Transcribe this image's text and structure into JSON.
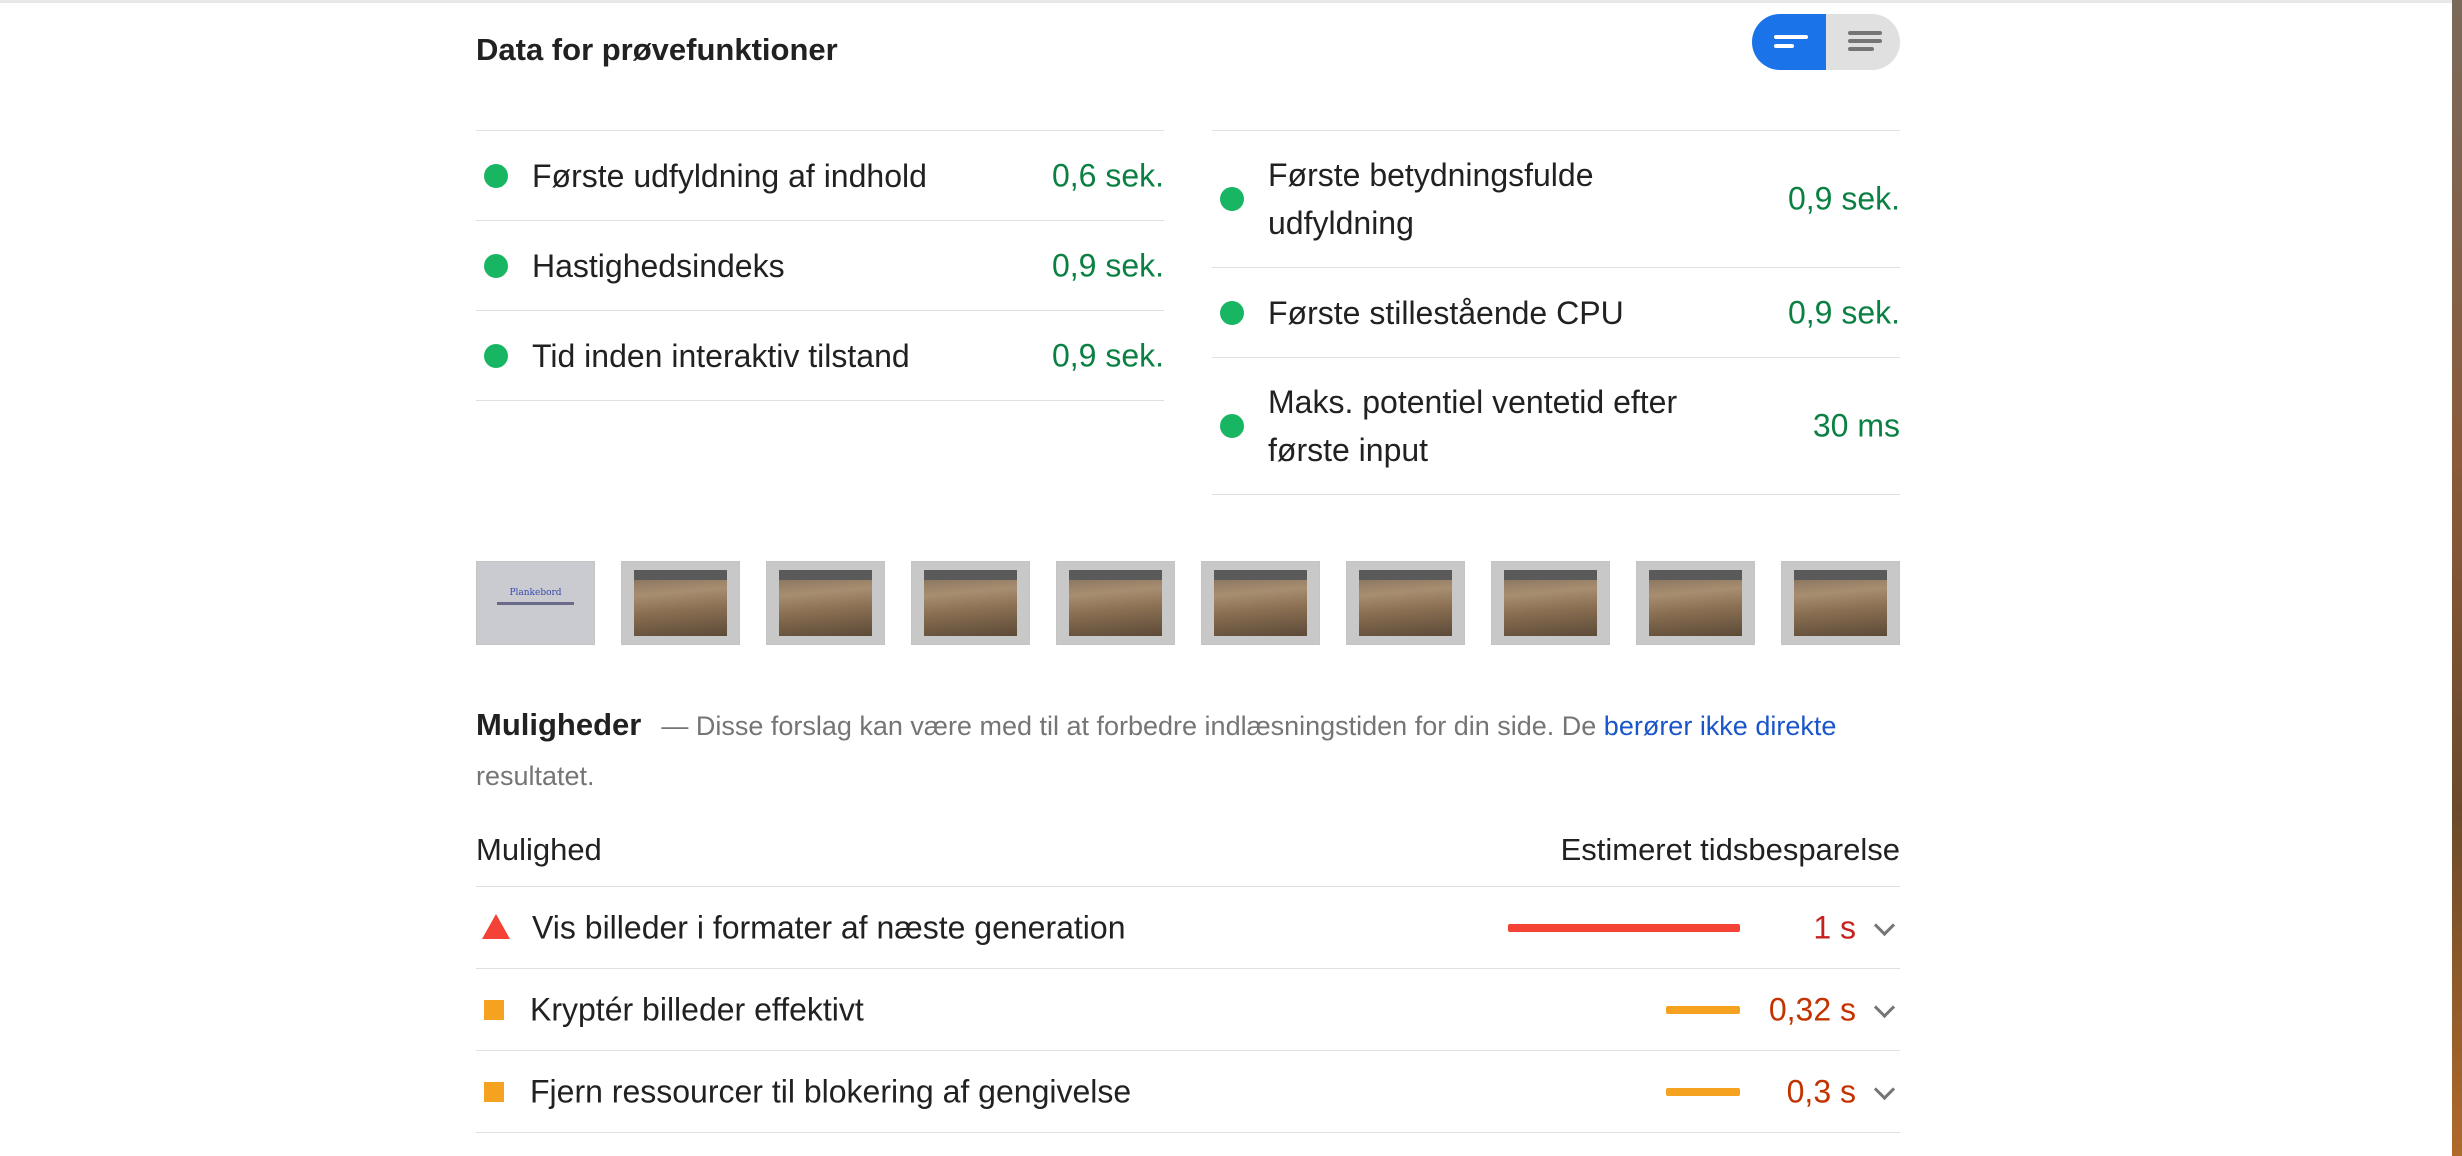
{
  "section": {
    "title": "Data for prøvefunktioner",
    "toggle": {
      "left_icon": "lines-icon",
      "right_icon": "list-icon"
    }
  },
  "metrics": {
    "left": [
      {
        "label": "Første udfyldning af indhold",
        "value": "0,6 sek.",
        "status": "pass"
      },
      {
        "label": "Hastighedsindeks",
        "value": "0,9 sek.",
        "status": "pass"
      },
      {
        "label": "Tid inden interaktiv tilstand",
        "value": "0,9 sek.",
        "status": "pass"
      }
    ],
    "right": [
      {
        "label": "Første betydningsfulde udfyldning",
        "value": "0,9 sek.",
        "status": "pass"
      },
      {
        "label": "Første stillestående CPU",
        "value": "0,9 sek.",
        "status": "pass"
      },
      {
        "label": "Maks. potentiel ventetid efter første input",
        "value": "30 ms",
        "status": "pass"
      }
    ],
    "pass_color": "#0b8043",
    "dot_color": "#18b663"
  },
  "filmstrip": {
    "first_frame_title": "Plankebord"
  },
  "opportunities": {
    "title": "Muligheder",
    "desc_prefix": "— Disse forslag kan være med til at forbedre indlæsningstiden for din side. De ",
    "link_text": "berører ikke direkte",
    "desc_suffix": " resultatet.",
    "col_left": "Mulighed",
    "col_right": "Estimeret tidsbesparelse",
    "rows": [
      {
        "label": "Vis billeder i formater af næste generation",
        "value": "1 s",
        "icon": "warning-triangle-icon",
        "level": 1.0,
        "color": "#f44336",
        "text_color": "#c5221f"
      },
      {
        "label": "Kryptér billeder effektivt",
        "value": "0,32 s",
        "icon": "average-square-icon",
        "level": 0.32,
        "color": "#f4a21f",
        "text_color": "#c33300"
      },
      {
        "label": "Fjern ressourcer til blokering af gengivelse",
        "value": "0,3 s",
        "icon": "average-square-icon",
        "level": 0.3,
        "color": "#f4a21f",
        "text_color": "#c33300"
      }
    ]
  }
}
